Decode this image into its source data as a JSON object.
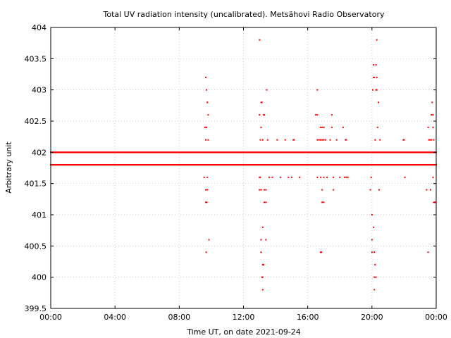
{
  "chart_data": {
    "type": "scatter",
    "title": "Total UV radiation intensity (uncalibrated). Metsähovi Radio Observatory",
    "xlabel": "Time UT, on date 2021-09-24",
    "ylabel": "Arbitrary unit",
    "xlim": [
      0,
      24
    ],
    "ylim": [
      399.5,
      404
    ],
    "grid": true,
    "marker_color": "#ff0000",
    "x_ticks": [
      {
        "value": 0,
        "label": "00:00"
      },
      {
        "value": 4,
        "label": "04:00"
      },
      {
        "value": 8,
        "label": "08:00"
      },
      {
        "value": 12,
        "label": "12:00"
      },
      {
        "value": 16,
        "label": "16:00"
      },
      {
        "value": 20,
        "label": "20:00"
      },
      {
        "value": 24,
        "label": "00:00"
      }
    ],
    "y_ticks": [
      {
        "value": 399.5,
        "label": "399.5"
      },
      {
        "value": 400,
        "label": "400"
      },
      {
        "value": 400.5,
        "label": "400.5"
      },
      {
        "value": 401,
        "label": "401"
      },
      {
        "value": 401.5,
        "label": "401.5"
      },
      {
        "value": 402,
        "label": "402"
      },
      {
        "value": 402.5,
        "label": "402.5"
      },
      {
        "value": 403,
        "label": "403"
      },
      {
        "value": 403.5,
        "label": "403.5"
      },
      {
        "value": 404,
        "label": "404"
      }
    ],
    "baseline_bands": [
      {
        "y": 402.0,
        "x_start": 0,
        "x_end": 24
      },
      {
        "y": 401.8,
        "x_start": 0,
        "x_end": 24
      }
    ],
    "points": [
      [
        9.65,
        403.2
      ],
      [
        9.7,
        403.0
      ],
      [
        9.75,
        402.8
      ],
      [
        9.8,
        402.6
      ],
      [
        9.6,
        402.4
      ],
      [
        9.7,
        402.4
      ],
      [
        9.65,
        402.2
      ],
      [
        9.8,
        402.2
      ],
      [
        9.55,
        401.6
      ],
      [
        9.75,
        401.6
      ],
      [
        9.65,
        401.4
      ],
      [
        9.75,
        401.4
      ],
      [
        9.65,
        401.2
      ],
      [
        9.72,
        401.2
      ],
      [
        9.85,
        400.6
      ],
      [
        9.68,
        400.4
      ],
      [
        9.75,
        402.8
      ],
      [
        13.0,
        403.8
      ],
      [
        13.1,
        402.8
      ],
      [
        13.15,
        402.8
      ],
      [
        13.0,
        402.6
      ],
      [
        13.25,
        402.6
      ],
      [
        13.3,
        402.6
      ],
      [
        13.1,
        402.4
      ],
      [
        13.05,
        402.2
      ],
      [
        13.2,
        402.2
      ],
      [
        13.45,
        403.0
      ],
      [
        13.5,
        402.2
      ],
      [
        13.0,
        401.6
      ],
      [
        13.05,
        401.6
      ],
      [
        13.0,
        401.4
      ],
      [
        13.1,
        401.4
      ],
      [
        13.3,
        401.4
      ],
      [
        13.4,
        401.4
      ],
      [
        13.3,
        401.2
      ],
      [
        13.4,
        401.2
      ],
      [
        13.2,
        400.8
      ],
      [
        13.1,
        400.6
      ],
      [
        13.4,
        400.6
      ],
      [
        13.1,
        400.4
      ],
      [
        13.2,
        400.2
      ],
      [
        13.25,
        400.2
      ],
      [
        13.15,
        400.0
      ],
      [
        13.2,
        400.0
      ],
      [
        13.2,
        399.8
      ],
      [
        13.6,
        401.6
      ],
      [
        13.8,
        401.6
      ],
      [
        14.1,
        402.2
      ],
      [
        14.3,
        401.6
      ],
      [
        14.6,
        402.2
      ],
      [
        14.8,
        401.6
      ],
      [
        15.0,
        401.6
      ],
      [
        15.1,
        402.2
      ],
      [
        15.15,
        402.2
      ],
      [
        15.5,
        401.6
      ],
      [
        16.5,
        402.6
      ],
      [
        16.6,
        402.6
      ],
      [
        16.6,
        403.0
      ],
      [
        16.6,
        402.2
      ],
      [
        16.7,
        402.2
      ],
      [
        16.8,
        402.2
      ],
      [
        16.9,
        402.2
      ],
      [
        17.0,
        402.2
      ],
      [
        17.1,
        402.2
      ],
      [
        16.8,
        402.4
      ],
      [
        16.9,
        402.4
      ],
      [
        17.0,
        402.4
      ],
      [
        16.6,
        401.6
      ],
      [
        16.8,
        401.6
      ],
      [
        17.0,
        401.6
      ],
      [
        16.9,
        401.4
      ],
      [
        16.9,
        401.2
      ],
      [
        17.0,
        401.2
      ],
      [
        16.8,
        400.4
      ],
      [
        16.85,
        400.4
      ],
      [
        17.2,
        401.6
      ],
      [
        17.4,
        402.2
      ],
      [
        17.5,
        402.6
      ],
      [
        17.5,
        402.4
      ],
      [
        17.6,
        401.4
      ],
      [
        17.6,
        401.6
      ],
      [
        17.8,
        402.2
      ],
      [
        18.0,
        401.6
      ],
      [
        18.2,
        402.4
      ],
      [
        18.3,
        401.6
      ],
      [
        18.35,
        402.2
      ],
      [
        18.4,
        402.2
      ],
      [
        18.4,
        401.6
      ],
      [
        18.5,
        401.6
      ],
      [
        19.9,
        401.4
      ],
      [
        19.95,
        401.6
      ],
      [
        20.0,
        401.0
      ],
      [
        20.0,
        400.6
      ],
      [
        20.0,
        400.4
      ],
      [
        20.05,
        403.0
      ],
      [
        20.1,
        403.2
      ],
      [
        20.1,
        403.4
      ],
      [
        20.15,
        403.2
      ],
      [
        20.2,
        402.2
      ],
      [
        20.1,
        400.8
      ],
      [
        20.15,
        400.4
      ],
      [
        20.2,
        400.2
      ],
      [
        20.15,
        400.0
      ],
      [
        20.25,
        400.0
      ],
      [
        20.15,
        399.8
      ],
      [
        20.3,
        403.8
      ],
      [
        20.25,
        403.4
      ],
      [
        20.3,
        403.2
      ],
      [
        20.25,
        403.0
      ],
      [
        20.3,
        403.0
      ],
      [
        20.35,
        402.4
      ],
      [
        20.4,
        402.8
      ],
      [
        20.45,
        401.4
      ],
      [
        20.5,
        402.2
      ],
      [
        21.95,
        402.2
      ],
      [
        22.0,
        402.2
      ],
      [
        22.05,
        401.6
      ],
      [
        23.4,
        401.4
      ],
      [
        23.5,
        402.4
      ],
      [
        23.5,
        400.4
      ],
      [
        23.55,
        402.2
      ],
      [
        23.6,
        402.2
      ],
      [
        23.65,
        401.4
      ],
      [
        23.7,
        402.6
      ],
      [
        23.75,
        402.8
      ],
      [
        23.7,
        402.2
      ],
      [
        23.8,
        402.4
      ],
      [
        23.8,
        402.6
      ],
      [
        23.85,
        402.2
      ],
      [
        23.8,
        401.6
      ],
      [
        23.85,
        401.2
      ],
      [
        23.9,
        401.2
      ],
      [
        23.95,
        401.2
      ],
      [
        23.9,
        402.0
      ]
    ]
  }
}
